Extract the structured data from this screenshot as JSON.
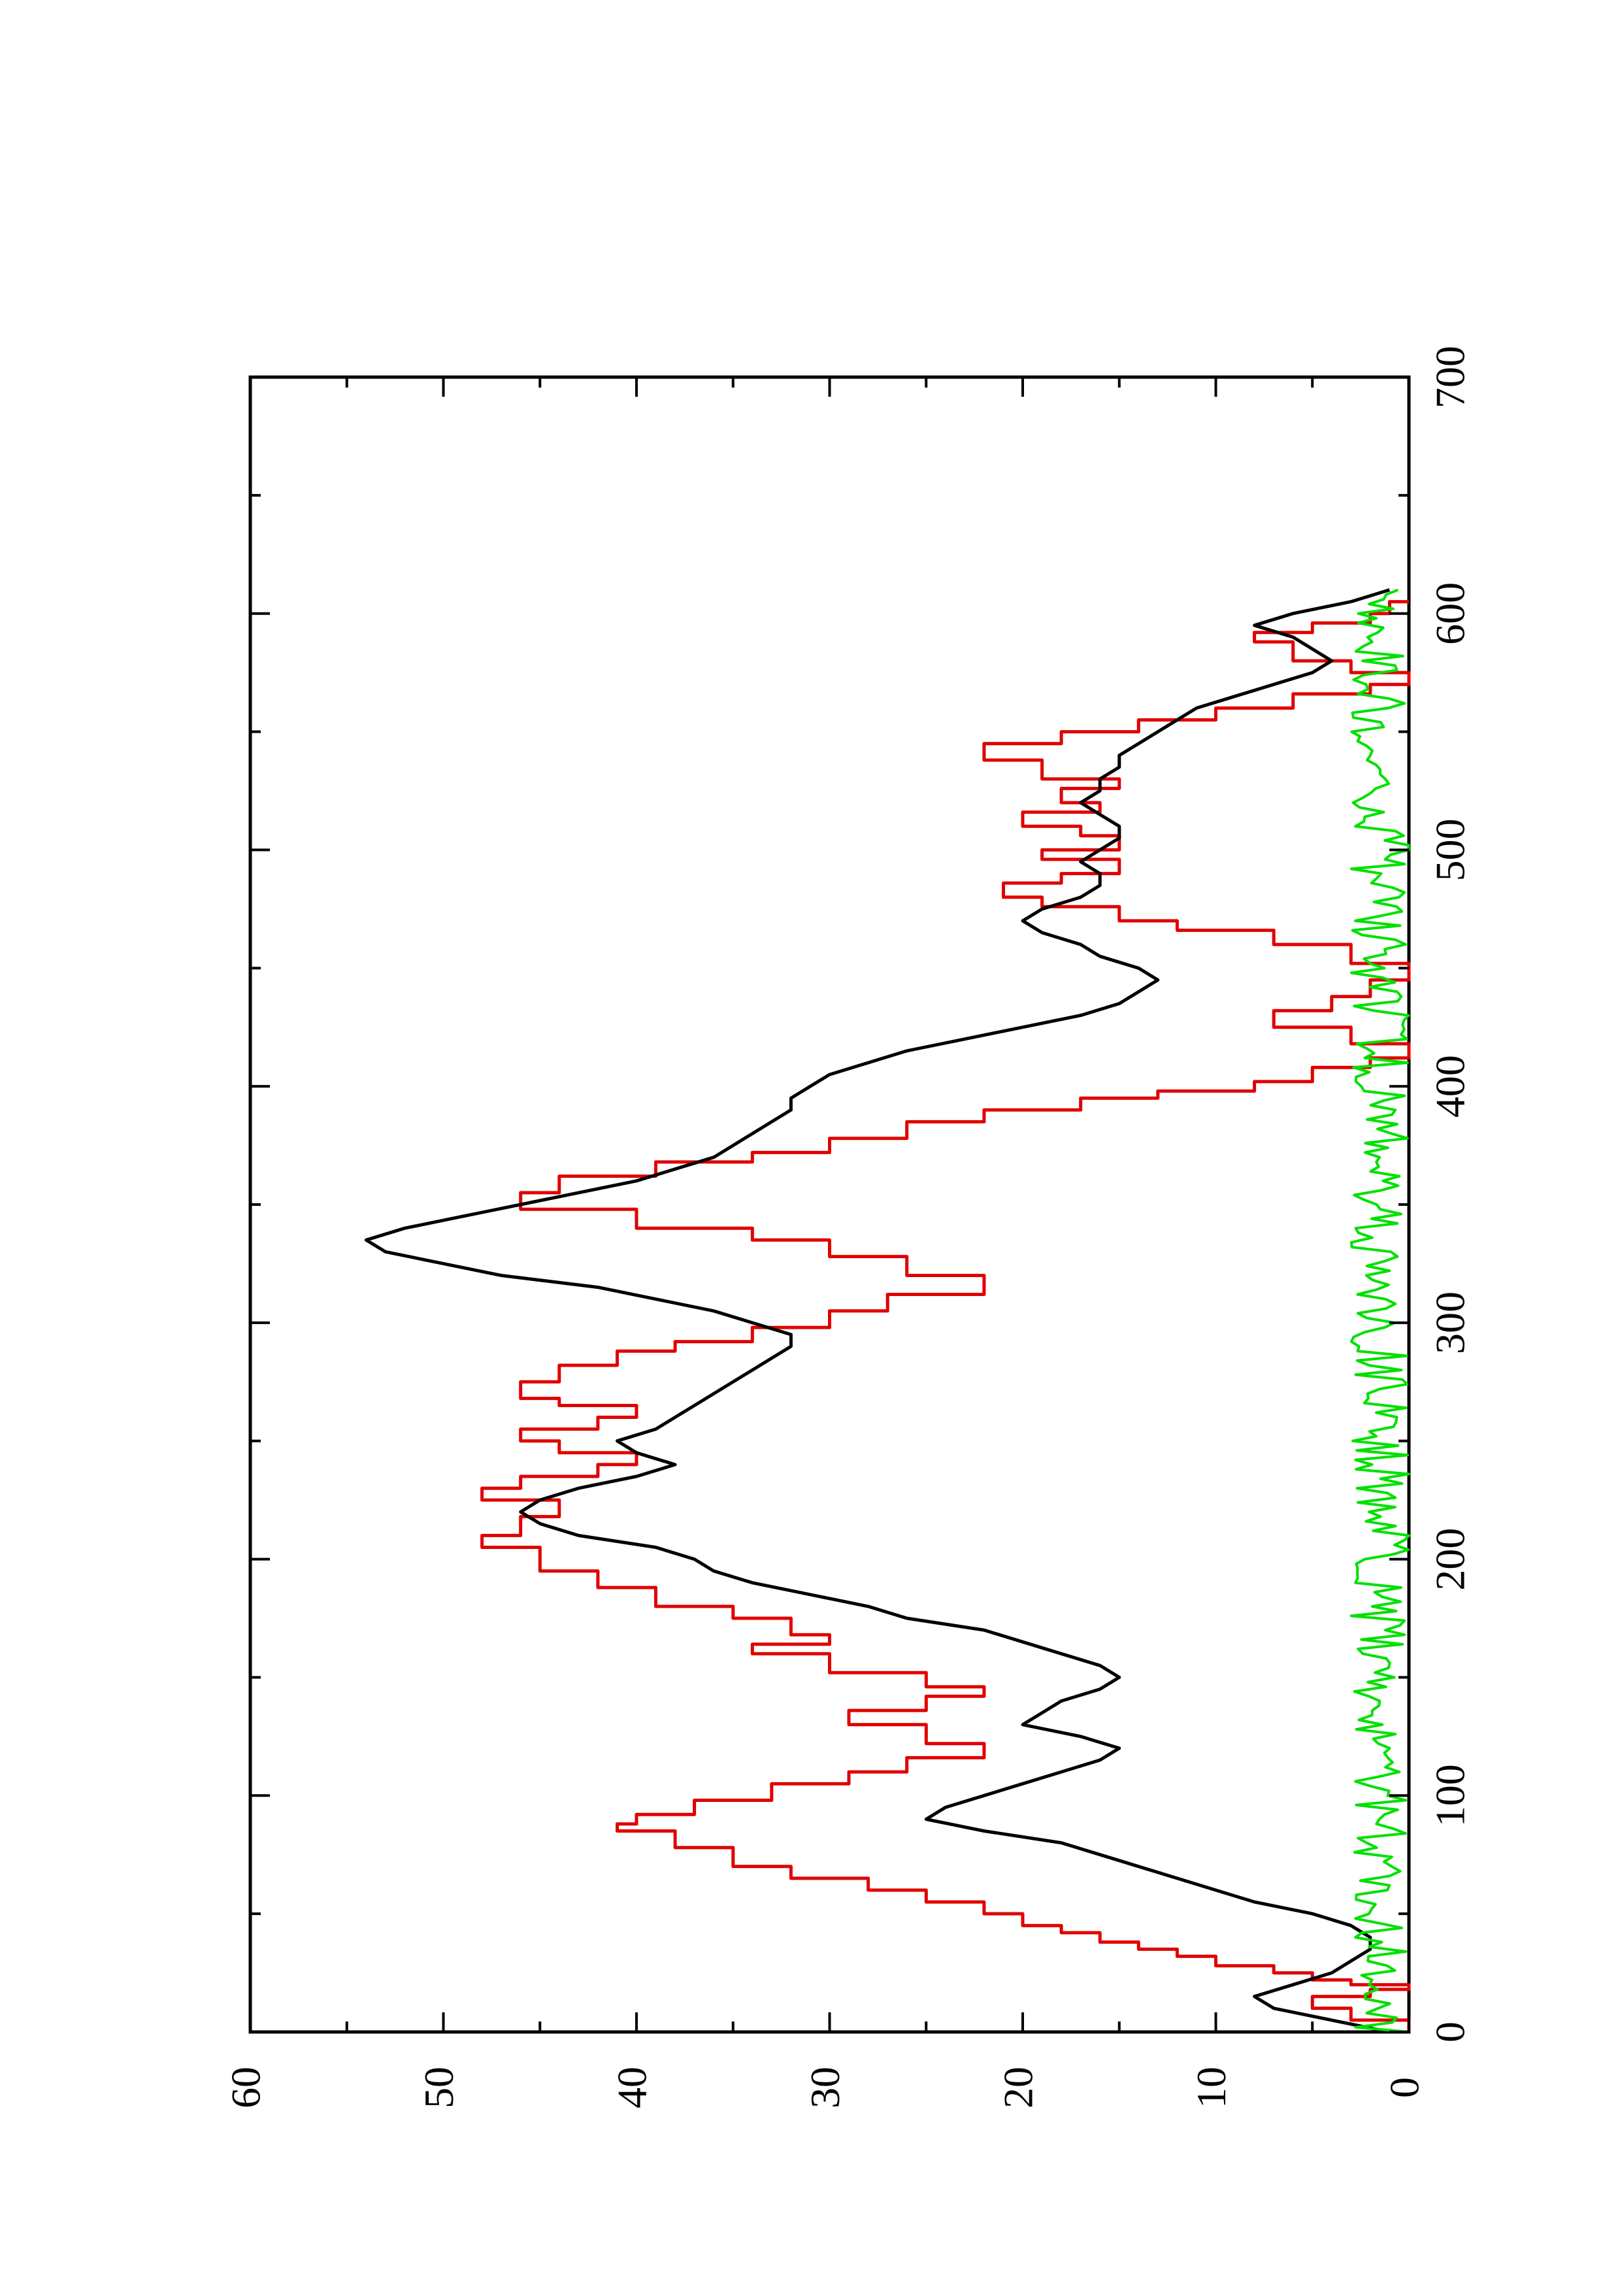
{
  "chart_data": {
    "type": "line",
    "orientation": "rotated-90-ccw",
    "title": "",
    "xlabel": "",
    "ylabel": "",
    "xlim": [
      0,
      700
    ],
    "ylim": [
      0,
      60
    ],
    "x_ticks": [
      0,
      100,
      200,
      300,
      400,
      500,
      600,
      700
    ],
    "y_ticks": [
      0,
      10,
      20,
      30,
      40,
      50,
      60
    ],
    "x_tick_labels": [
      "0",
      "100",
      "200",
      "300",
      "400",
      "500",
      "600",
      "700"
    ],
    "y_tick_labels": [
      "0",
      "10",
      "20",
      "30",
      "40",
      "50",
      "60"
    ],
    "grid": false,
    "legend": "none",
    "series": [
      {
        "color": "#e00000",
        "step": true,
        "x": [
          0,
          5,
          10,
          15,
          18,
          20,
          22,
          25,
          28,
          32,
          35,
          38,
          42,
          45,
          50,
          55,
          60,
          65,
          70,
          78,
          85,
          88,
          92,
          98,
          105,
          110,
          116,
          118,
          122,
          130,
          136,
          142,
          146,
          152,
          160,
          164,
          168,
          175,
          180,
          188,
          195,
          205,
          210,
          218,
          225,
          230,
          235,
          240,
          245,
          250,
          255,
          260,
          265,
          268,
          275,
          282,
          288,
          292,
          298,
          305,
          312,
          320,
          328,
          335,
          340,
          348,
          355,
          362,
          368,
          372,
          378,
          385,
          390,
          395,
          398,
          402,
          408,
          412,
          418,
          425,
          432,
          438,
          445,
          452,
          460,
          466,
          470,
          476,
          480,
          486,
          490,
          496,
          500,
          506,
          510,
          516,
          520,
          526,
          530,
          538,
          545,
          550,
          555,
          560,
          566,
          570,
          575,
          580,
          588,
          592,
          596,
          600,
          605
        ],
        "y": [
          0,
          3,
          5,
          2,
          0,
          3,
          5,
          7,
          10,
          12,
          14,
          16,
          18,
          20,
          22,
          25,
          28,
          32,
          35,
          38,
          41,
          40,
          37,
          33,
          29,
          26,
          22,
          22,
          25,
          29,
          25,
          22,
          25,
          30,
          34,
          30,
          32,
          35,
          39,
          42,
          45,
          48,
          46,
          44,
          48,
          46,
          42,
          40,
          44,
          46,
          42,
          40,
          44,
          46,
          44,
          41,
          38,
          34,
          30,
          27,
          22,
          26,
          30,
          34,
          40,
          46,
          44,
          39,
          34,
          30,
          26,
          22,
          17,
          13,
          8,
          5,
          2,
          0,
          3,
          7,
          4,
          2,
          0,
          3,
          7,
          12,
          15,
          19,
          21,
          18,
          15,
          19,
          15,
          17,
          20,
          16,
          18,
          15,
          19,
          22,
          18,
          14,
          10,
          6,
          2,
          0,
          3,
          6,
          8,
          5,
          2,
          1,
          0
        ]
      },
      {
        "color": "#000000",
        "step": false,
        "x": [
          0,
          5,
          10,
          15,
          20,
          25,
          30,
          35,
          40,
          45,
          50,
          55,
          60,
          65,
          70,
          75,
          80,
          85,
          90,
          95,
          100,
          105,
          110,
          115,
          120,
          125,
          130,
          135,
          140,
          145,
          150,
          155,
          160,
          165,
          170,
          175,
          180,
          185,
          190,
          195,
          200,
          205,
          210,
          215,
          220,
          225,
          230,
          235,
          240,
          245,
          250,
          255,
          260,
          265,
          270,
          275,
          280,
          285,
          290,
          295,
          300,
          305,
          310,
          315,
          320,
          325,
          330,
          335,
          340,
          345,
          350,
          355,
          360,
          365,
          370,
          375,
          380,
          385,
          390,
          395,
          400,
          405,
          410,
          415,
          420,
          425,
          430,
          435,
          440,
          445,
          450,
          455,
          460,
          465,
          470,
          475,
          480,
          485,
          490,
          495,
          500,
          505,
          510,
          515,
          520,
          525,
          530,
          535,
          540,
          545,
          550,
          555,
          560,
          565,
          570,
          575,
          580,
          585,
          590,
          595,
          600,
          605,
          610
        ],
        "y": [
          1,
          4,
          7,
          8,
          6,
          4,
          3,
          2,
          2,
          3,
          5,
          8,
          10,
          12,
          14,
          16,
          18,
          22,
          25,
          24,
          22,
          20,
          18,
          16,
          15,
          17,
          20,
          19,
          18,
          16,
          15,
          16,
          18,
          20,
          22,
          26,
          28,
          31,
          34,
          36,
          37,
          39,
          43,
          45,
          46,
          45,
          43,
          40,
          38,
          40,
          41,
          39,
          38,
          37,
          36,
          35,
          34,
          33,
          32,
          32,
          34,
          36,
          39,
          42,
          47,
          50,
          53,
          54,
          52,
          49,
          46,
          43,
          40,
          38,
          36,
          35,
          34,
          33,
          32,
          32,
          31,
          30,
          28,
          26,
          23,
          20,
          17,
          15,
          14,
          13,
          14,
          16,
          17,
          19,
          20,
          19,
          17,
          16,
          16,
          17,
          16,
          15,
          15,
          16,
          17,
          16,
          16,
          15,
          15,
          14,
          13,
          12,
          11,
          9,
          7,
          5,
          4,
          5,
          6,
          8,
          6,
          3,
          1
        ]
      },
      {
        "color": "#00e000",
        "step": false,
        "noise": true,
        "x_start": 0,
        "x_end": 610,
        "y_range": [
          0,
          3
        ],
        "points": 305
      }
    ]
  }
}
